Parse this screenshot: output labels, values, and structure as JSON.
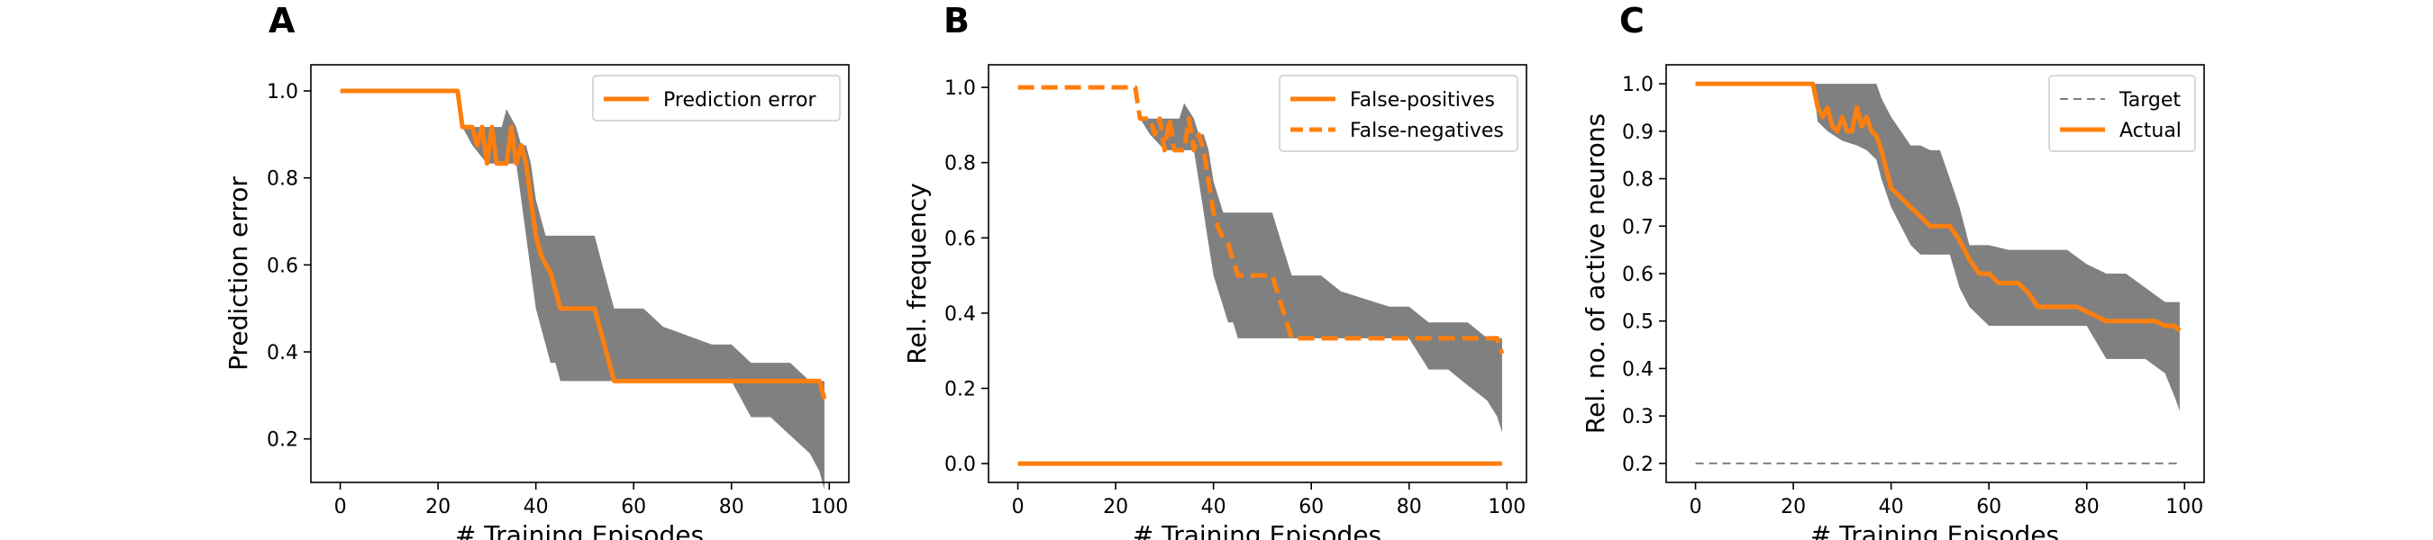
{
  "chart_data": [
    {
      "type": "line",
      "panel": "A",
      "xlabel": "# Training Episodes",
      "ylabel": "Prediction error",
      "xlim": [
        -6,
        104
      ],
      "ylim": [
        0.1,
        1.06
      ],
      "xticks": [
        "0",
        "20",
        "40",
        "60",
        "80",
        "100"
      ],
      "yticks": [
        "0.2",
        "0.4",
        "0.6",
        "0.8",
        "1.0"
      ],
      "grid": false,
      "legend_position": "top-right",
      "series": [
        {
          "name": "Prediction error",
          "style": "solid",
          "color": "#ff7f0e",
          "x": [
            0,
            24,
            25,
            27,
            28,
            29,
            30,
            31,
            32,
            34,
            35,
            36,
            37,
            38,
            39,
            40,
            41,
            42,
            43,
            44,
            45,
            46,
            47,
            48,
            52,
            53,
            55,
            56,
            96,
            97,
            98,
            99
          ],
          "y": [
            1.0,
            1.0,
            0.917,
            0.917,
            0.875,
            0.917,
            0.833,
            0.917,
            0.833,
            0.833,
            0.917,
            0.833,
            0.875,
            0.833,
            0.75,
            0.667,
            0.625,
            0.6,
            0.583,
            0.542,
            0.5,
            0.5,
            0.5,
            0.5,
            0.5,
            0.458,
            0.375,
            0.333,
            0.333,
            0.333,
            0.333,
            0.292
          ]
        }
      ],
      "band": {
        "x": [
          0,
          24,
          25,
          27,
          30,
          33,
          34,
          36,
          37,
          38,
          39,
          40,
          41,
          42,
          43,
          44,
          45,
          48,
          50,
          52,
          54,
          56,
          62,
          66,
          76,
          80,
          84,
          88,
          92,
          96,
          98,
          99
        ],
        "lower": [
          1.0,
          1.0,
          0.917,
          0.875,
          0.833,
          0.833,
          0.833,
          0.833,
          0.75,
          0.667,
          0.583,
          0.5,
          0.458,
          0.417,
          0.375,
          0.375,
          0.333,
          0.333,
          0.333,
          0.333,
          0.333,
          0.333,
          0.333,
          0.333,
          0.333,
          0.333,
          0.25,
          0.25,
          0.208,
          0.167,
          0.125,
          0.083
        ],
        "upper": [
          1.0,
          1.0,
          0.917,
          0.917,
          0.917,
          0.917,
          0.958,
          0.917,
          0.875,
          0.875,
          0.833,
          0.75,
          0.708,
          0.667,
          0.667,
          0.667,
          0.667,
          0.667,
          0.667,
          0.667,
          0.583,
          0.5,
          0.5,
          0.458,
          0.417,
          0.417,
          0.375,
          0.375,
          0.375,
          0.333,
          0.333,
          0.333
        ]
      }
    },
    {
      "type": "line",
      "panel": "B",
      "xlabel": "# Training Episodes",
      "ylabel": "Rel. frequency",
      "xlim": [
        -6,
        104
      ],
      "ylim": [
        -0.05,
        1.06
      ],
      "xticks": [
        "0",
        "20",
        "40",
        "60",
        "80",
        "100"
      ],
      "yticks": [
        "0.0",
        "0.2",
        "0.4",
        "0.6",
        "0.8",
        "1.0"
      ],
      "grid": false,
      "legend_position": "top-right",
      "series": [
        {
          "name": "False-positives",
          "style": "solid",
          "color": "#ff7f0e",
          "x": [
            0,
            99
          ],
          "y": [
            0.0,
            0.0
          ]
        },
        {
          "name": "False-negatives",
          "style": "dashed",
          "color": "#ff7f0e",
          "x": [
            0,
            24,
            25,
            27,
            28,
            29,
            30,
            31,
            32,
            34,
            35,
            36,
            37,
            38,
            39,
            40,
            41,
            42,
            43,
            44,
            45,
            46,
            47,
            48,
            52,
            53,
            55,
            56,
            96,
            97,
            98,
            99
          ],
          "y": [
            1.0,
            1.0,
            0.917,
            0.917,
            0.875,
            0.917,
            0.833,
            0.917,
            0.833,
            0.833,
            0.917,
            0.833,
            0.875,
            0.833,
            0.75,
            0.667,
            0.625,
            0.6,
            0.583,
            0.542,
            0.5,
            0.5,
            0.5,
            0.5,
            0.5,
            0.458,
            0.375,
            0.333,
            0.333,
            0.333,
            0.333,
            0.292
          ]
        }
      ],
      "band": {
        "x": [
          0,
          24,
          25,
          27,
          30,
          33,
          34,
          36,
          37,
          38,
          39,
          40,
          41,
          42,
          43,
          44,
          45,
          48,
          50,
          52,
          54,
          56,
          62,
          66,
          76,
          80,
          84,
          88,
          92,
          96,
          98,
          99
        ],
        "lower": [
          1.0,
          1.0,
          0.917,
          0.875,
          0.833,
          0.833,
          0.833,
          0.833,
          0.75,
          0.667,
          0.583,
          0.5,
          0.458,
          0.417,
          0.375,
          0.375,
          0.333,
          0.333,
          0.333,
          0.333,
          0.333,
          0.333,
          0.333,
          0.333,
          0.333,
          0.333,
          0.25,
          0.25,
          0.208,
          0.167,
          0.125,
          0.083
        ],
        "upper": [
          1.0,
          1.0,
          0.917,
          0.917,
          0.917,
          0.917,
          0.958,
          0.917,
          0.875,
          0.875,
          0.833,
          0.75,
          0.708,
          0.667,
          0.667,
          0.667,
          0.667,
          0.667,
          0.667,
          0.667,
          0.583,
          0.5,
          0.5,
          0.458,
          0.417,
          0.417,
          0.375,
          0.375,
          0.375,
          0.333,
          0.333,
          0.333
        ]
      }
    },
    {
      "type": "line",
      "panel": "C",
      "xlabel": "# Training Episodes",
      "ylabel": "Rel. no. of active neurons",
      "xlim": [
        -6,
        104
      ],
      "ylim": [
        0.16,
        1.04
      ],
      "xticks": [
        "0",
        "20",
        "40",
        "60",
        "80",
        "100"
      ],
      "yticks": [
        "0.2",
        "0.3",
        "0.4",
        "0.5",
        "0.6",
        "0.7",
        "0.8",
        "0.9",
        "1.0"
      ],
      "grid": false,
      "legend_position": "top-right",
      "series": [
        {
          "name": "Target",
          "style": "dashed",
          "color": "#808080",
          "x": [
            0,
            99
          ],
          "y": [
            0.2,
            0.2
          ]
        },
        {
          "name": "Actual",
          "style": "solid",
          "color": "#ff7f0e",
          "x": [
            0,
            24,
            25,
            26,
            27,
            28,
            29,
            30,
            31,
            32,
            33,
            34,
            35,
            36,
            37,
            38,
            39,
            40,
            42,
            44,
            46,
            48,
            52,
            54,
            56,
            58,
            60,
            62,
            66,
            68,
            70,
            78,
            80,
            84,
            86,
            94,
            96,
            98,
            99
          ],
          "y": [
            1.0,
            1.0,
            0.95,
            0.93,
            0.95,
            0.91,
            0.9,
            0.93,
            0.9,
            0.9,
            0.95,
            0.91,
            0.93,
            0.9,
            0.89,
            0.86,
            0.82,
            0.78,
            0.76,
            0.74,
            0.72,
            0.7,
            0.7,
            0.67,
            0.63,
            0.6,
            0.6,
            0.58,
            0.58,
            0.56,
            0.53,
            0.53,
            0.52,
            0.5,
            0.5,
            0.5,
            0.49,
            0.49,
            0.48
          ]
        }
      ],
      "band": {
        "x": [
          0,
          24,
          25,
          27,
          30,
          33,
          35,
          37,
          38,
          39,
          40,
          42,
          44,
          46,
          48,
          50,
          52,
          54,
          56,
          58,
          60,
          64,
          70,
          76,
          80,
          84,
          88,
          92,
          96,
          98,
          99
        ],
        "lower": [
          1.0,
          1.0,
          0.92,
          0.9,
          0.88,
          0.87,
          0.86,
          0.84,
          0.8,
          0.77,
          0.74,
          0.7,
          0.66,
          0.64,
          0.64,
          0.64,
          0.64,
          0.57,
          0.53,
          0.51,
          0.49,
          0.49,
          0.49,
          0.49,
          0.49,
          0.42,
          0.42,
          0.42,
          0.39,
          0.34,
          0.31
        ],
        "upper": [
          1.0,
          1.0,
          1.0,
          1.0,
          1.0,
          1.0,
          1.0,
          1.0,
          0.97,
          0.95,
          0.93,
          0.9,
          0.87,
          0.87,
          0.86,
          0.86,
          0.8,
          0.74,
          0.66,
          0.66,
          0.66,
          0.65,
          0.65,
          0.65,
          0.62,
          0.6,
          0.6,
          0.57,
          0.54,
          0.54,
          0.54
        ]
      }
    }
  ]
}
